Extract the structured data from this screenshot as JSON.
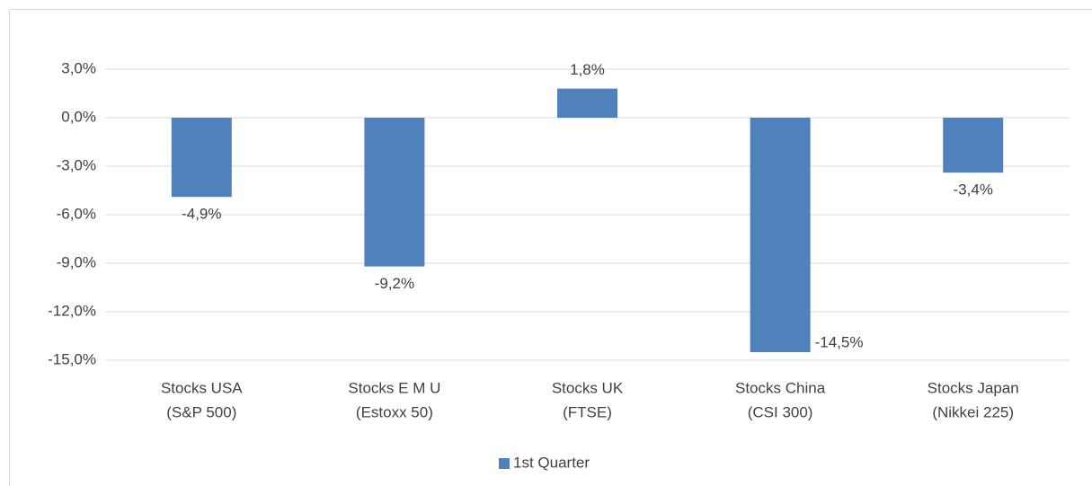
{
  "chart_data": {
    "type": "bar",
    "categories": [
      [
        "Stocks USA",
        "(S&P 500)"
      ],
      [
        "Stocks E M U",
        "(Estoxx 50)"
      ],
      [
        "Stocks UK",
        "(FTSE)"
      ],
      [
        "Stocks China",
        "(CSI 300)"
      ],
      [
        "Stocks Japan",
        "(Nikkei 225)"
      ]
    ],
    "series": [
      {
        "name": "1st Quarter",
        "color": "#4f81bd",
        "values": [
          -4.9,
          -9.2,
          1.8,
          -14.5,
          -3.4
        ],
        "value_labels": [
          "-4,9%",
          "-9,2%",
          "1,8%",
          "-14,5%",
          "-3,4%"
        ]
      }
    ],
    "ylim": [
      -15,
      3
    ],
    "yticks": [
      {
        "value": 3,
        "label": "3,0%"
      },
      {
        "value": 0,
        "label": "0,0%"
      },
      {
        "value": -3,
        "label": "-3,0%"
      },
      {
        "value": -6,
        "label": "-6,0%"
      },
      {
        "value": -9,
        "label": "-9,0%"
      },
      {
        "value": -12,
        "label": "-12,0%"
      },
      {
        "value": -15,
        "label": "-15,0%"
      }
    ],
    "grid": true,
    "legend": "bottom"
  }
}
